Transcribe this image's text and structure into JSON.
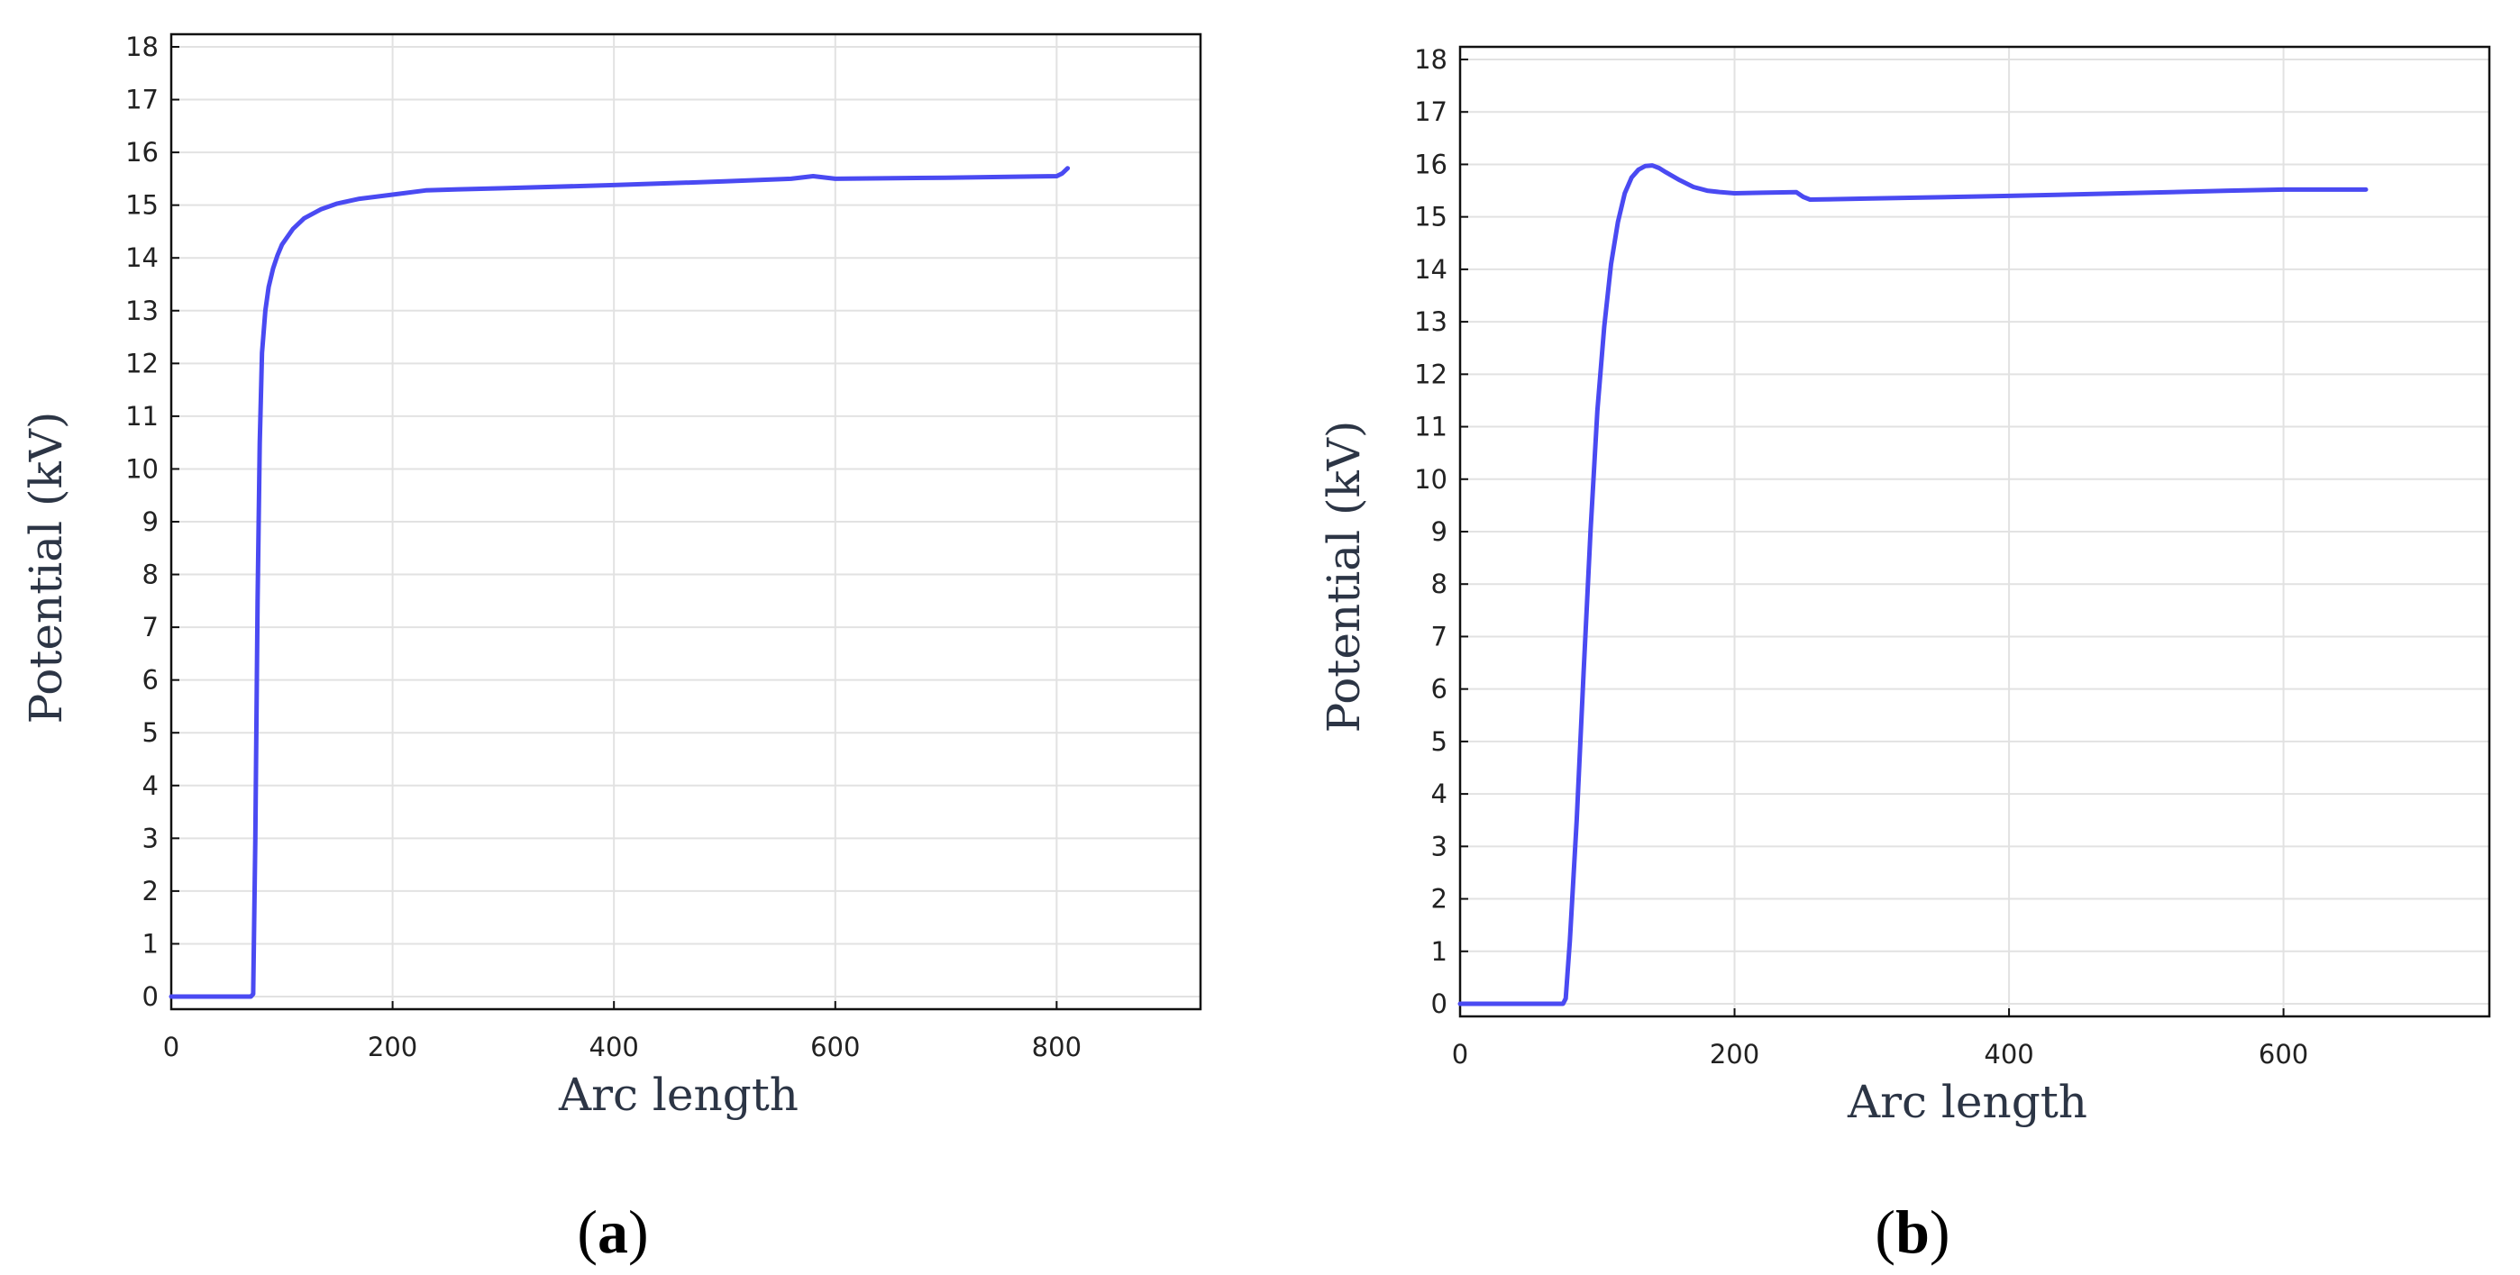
{
  "colors": {
    "series": "#4a4af2",
    "grid": "#e2e2e2",
    "axis": "#111111"
  },
  "chart_data": [
    {
      "type": "line",
      "panel": "a",
      "panel_label": [
        "(",
        "a",
        ")"
      ],
      "xlabel": "Arc length",
      "ylabel": "Potential (kV)",
      "xlim": [
        0,
        930
      ],
      "ylim": [
        0,
        18
      ],
      "xticks": [
        0,
        200,
        400,
        600,
        800
      ],
      "yticks": [
        0,
        1,
        2,
        3,
        4,
        5,
        6,
        7,
        8,
        9,
        10,
        11,
        12,
        13,
        14,
        15,
        16,
        17,
        18
      ],
      "grid": true,
      "series": [
        {
          "x": [
            0,
            72,
            74,
            76,
            78,
            80,
            82,
            85,
            88,
            92,
            96,
            100,
            110,
            120,
            135,
            150,
            170,
            200,
            230,
            260,
            300,
            400,
            500,
            560,
            580,
            600,
            700,
            800,
            805,
            810
          ],
          "values": [
            0,
            0,
            0.05,
            3,
            7.5,
            10.5,
            12.2,
            13.0,
            13.45,
            13.8,
            14.05,
            14.25,
            14.55,
            14.75,
            14.92,
            15.03,
            15.12,
            15.2,
            15.28,
            15.3,
            15.32,
            15.38,
            15.45,
            15.5,
            15.55,
            15.5,
            15.52,
            15.55,
            15.6,
            15.7
          ]
        }
      ]
    },
    {
      "type": "line",
      "panel": "b",
      "panel_label": [
        "(",
        "b",
        ")"
      ],
      "xlabel": "Arc length",
      "ylabel": "Potential (kV)",
      "xlim": [
        0,
        750
      ],
      "ylim": [
        0,
        18
      ],
      "xticks": [
        0,
        200,
        400,
        600
      ],
      "yticks": [
        0,
        1,
        2,
        3,
        4,
        5,
        6,
        7,
        8,
        9,
        10,
        11,
        12,
        13,
        14,
        15,
        16,
        17,
        18
      ],
      "grid": true,
      "series": [
        {
          "x": [
            0,
            75,
            77,
            80,
            85,
            90,
            95,
            100,
            105,
            110,
            115,
            120,
            125,
            130,
            135,
            140,
            145,
            150,
            160,
            170,
            180,
            190,
            200,
            220,
            245,
            250,
            255,
            300,
            400,
            500,
            560,
            600,
            660
          ],
          "values": [
            0,
            0,
            0.1,
            1.2,
            3.5,
            6.3,
            9.0,
            11.3,
            12.9,
            14.1,
            14.9,
            15.45,
            15.75,
            15.9,
            15.97,
            15.98,
            15.93,
            15.85,
            15.7,
            15.57,
            15.5,
            15.47,
            15.45,
            15.46,
            15.47,
            15.38,
            15.33,
            15.35,
            15.4,
            15.46,
            15.5,
            15.52,
            15.52
          ]
        }
      ]
    }
  ]
}
